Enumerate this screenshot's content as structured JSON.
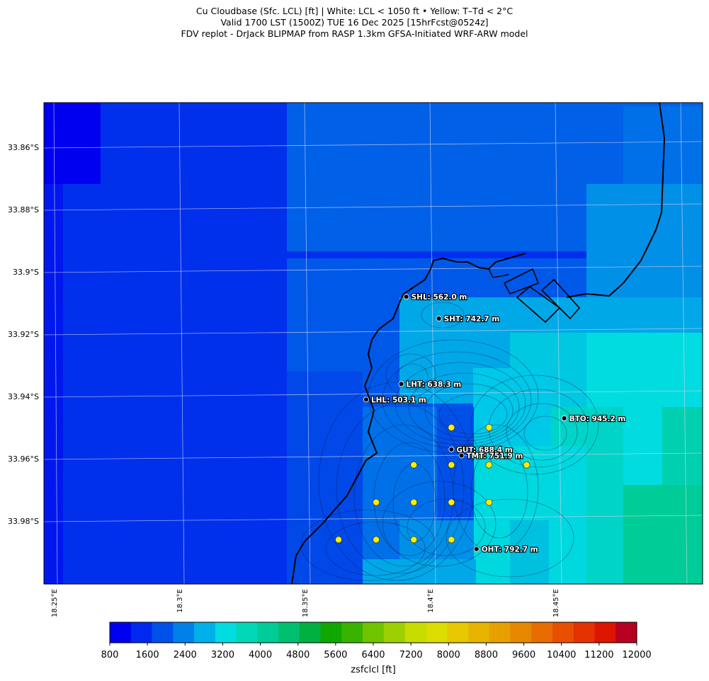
{
  "title": {
    "line1": "Cu Cloudbase (Sfc. LCL) [ft]  |  White: LCL < 1050 ft • Yellow: T–Td < 2°C",
    "line2": "Valid 1700 LST (1500Z) TUE 16 Dec 2025 [15hrFcst@0524z]",
    "line3": "FDV replot - DrJack BLIPMAP from RASP 1.3km GFSA-Initiated WRF-ARW model"
  },
  "map": {
    "lat_ticks": [
      "33.86°S",
      "33.88°S",
      "33.9°S",
      "33.92°S",
      "33.94°S",
      "33.96°S",
      "33.98°S"
    ],
    "lon_ticks": [
      "18.25°E",
      "18.3°E",
      "18.35°E",
      "18.4°E",
      "18.45°E"
    ],
    "stations": [
      {
        "code": "SHL",
        "label": "SHL: 562.0 m",
        "lon": 18.39,
        "lat": -33.908
      },
      {
        "code": "SHT",
        "label": "SHT: 742.7 m",
        "lon": 18.403,
        "lat": -33.915
      },
      {
        "code": "LHT",
        "label": "LHT: 638.3 m",
        "lon": 18.388,
        "lat": -33.936
      },
      {
        "code": "LHL",
        "label": "LHL: 503.1 m",
        "lon": 18.374,
        "lat": -33.941
      },
      {
        "code": "BTO",
        "label": "BTO: 945.2 m",
        "lon": 18.453,
        "lat": -33.947
      },
      {
        "code": "GUT",
        "label": "GUT: 688.4 m",
        "lon": 18.408,
        "lat": -33.957
      },
      {
        "code": "TMT",
        "label": "TMT: 751.9 m",
        "lon": 18.412,
        "lat": -33.959
      },
      {
        "code": "OHT",
        "label": "OHT: 792.7 m",
        "lon": 18.418,
        "lat": -33.989
      }
    ],
    "yellow_markers": [
      {
        "lon": 18.408,
        "lat": -33.95
      },
      {
        "lon": 18.423,
        "lat": -33.95
      },
      {
        "lon": 18.393,
        "lat": -33.962
      },
      {
        "lon": 18.408,
        "lat": -33.962
      },
      {
        "lon": 18.423,
        "lat": -33.962
      },
      {
        "lon": 18.438,
        "lat": -33.962
      },
      {
        "lon": 18.378,
        "lat": -33.974
      },
      {
        "lon": 18.393,
        "lat": -33.974
      },
      {
        "lon": 18.408,
        "lat": -33.974
      },
      {
        "lon": 18.423,
        "lat": -33.974
      },
      {
        "lon": 18.363,
        "lat": -33.986
      },
      {
        "lon": 18.378,
        "lat": -33.986
      },
      {
        "lon": 18.393,
        "lat": -33.986
      },
      {
        "lon": 18.408,
        "lat": -33.986
      }
    ]
  },
  "colorbar": {
    "label": "zsfclcl [ft]",
    "tick_labels": [
      "800",
      "1600",
      "2400",
      "3200",
      "4000",
      "4800",
      "5600",
      "6400",
      "7200",
      "8000",
      "8800",
      "9600",
      "10400",
      "11200",
      "12000"
    ],
    "colors": [
      "#0000f0",
      "#0028ee",
      "#0050ea",
      "#0080e8",
      "#00b0e8",
      "#00dce0",
      "#00d8b8",
      "#00cc98",
      "#00c070",
      "#00b040",
      "#10a800",
      "#38b400",
      "#70c400",
      "#9cd000",
      "#c8dc00",
      "#dcdc00",
      "#e6c800",
      "#e8b400",
      "#e8a000",
      "#e88800",
      "#e86c00",
      "#e85000",
      "#e43200",
      "#dc1400",
      "#b80020"
    ]
  }
}
